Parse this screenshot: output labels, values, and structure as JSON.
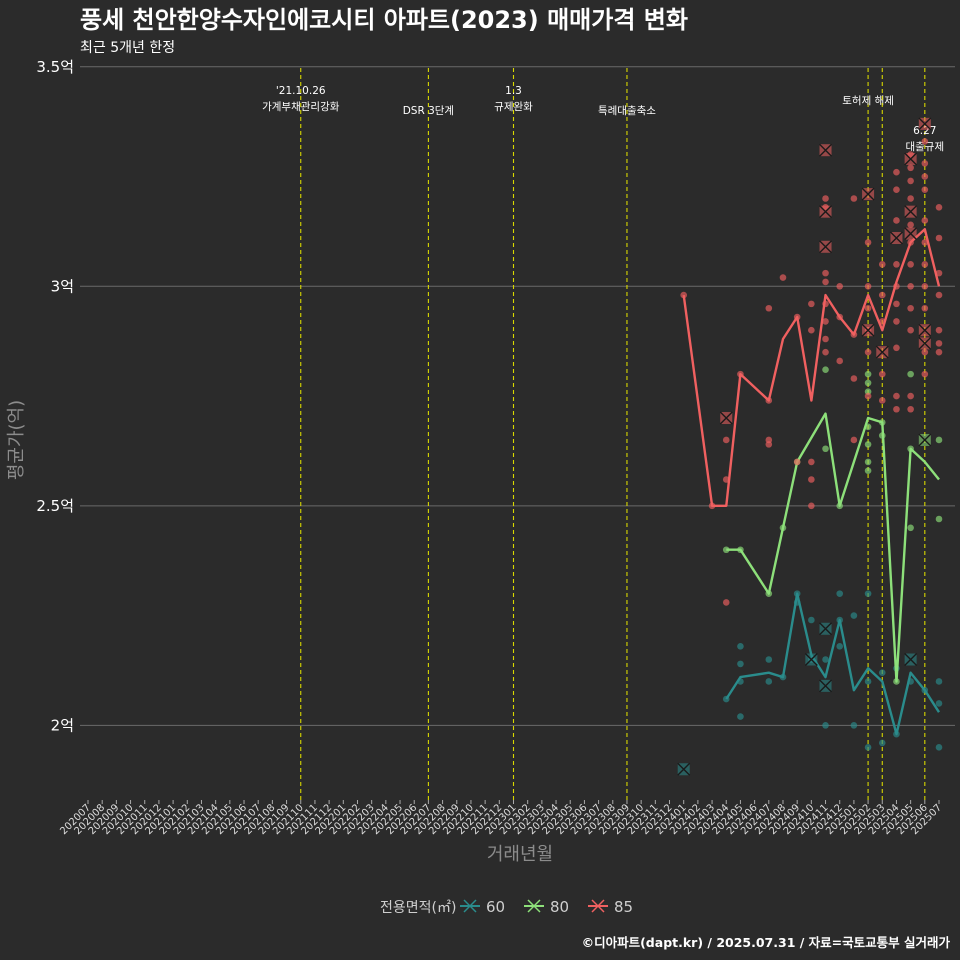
{
  "title": "풍세 천안한양수자인에코시티 아파트(2023) 매매가격 변화",
  "subtitle": "최근 5개년 한정",
  "caption": "©디아파트(dapt.kr) / 2025.07.31 / 자료=국토교통부 실거래가",
  "chart_data": {
    "type": "line",
    "xlabel": "거래년월",
    "ylabel": "평균가(억)",
    "ylim": [
      1.83,
      3.52
    ],
    "y_ticks": [
      {
        "value": 2.0,
        "label": "2억"
      },
      {
        "value": 2.5,
        "label": "2.5억"
      },
      {
        "value": 3.0,
        "label": "3억"
      },
      {
        "value": 3.5,
        "label": "3.5억"
      }
    ],
    "x_categories": [
      "202007",
      "202008",
      "202009",
      "202010",
      "202011",
      "202012",
      "202101",
      "202102",
      "202103",
      "202104",
      "202105",
      "202106",
      "202107",
      "202108",
      "202109",
      "202110",
      "202111",
      "202112",
      "202201",
      "202202",
      "202203",
      "202204",
      "202205",
      "202206",
      "202207",
      "202208",
      "202209",
      "202210",
      "202211",
      "202212",
      "202301",
      "202302",
      "202303",
      "202304",
      "202305",
      "202306",
      "202307",
      "202308",
      "202309",
      "202310",
      "202311",
      "202312",
      "202401",
      "202402",
      "202403",
      "202404",
      "202405",
      "202406",
      "202407",
      "202408",
      "202409",
      "202410",
      "202411",
      "202412",
      "202501",
      "202502",
      "202503",
      "202504",
      "202505",
      "202506",
      "202507"
    ],
    "grid": true,
    "legend": {
      "title": "전용면적(㎡)",
      "position": "bottom",
      "items": [
        {
          "label": "60",
          "color": "#2a8c8c"
        },
        {
          "label": "80",
          "color": "#8de07a"
        },
        {
          "label": "85",
          "color": "#f06060"
        }
      ]
    },
    "events": [
      {
        "x": "202110",
        "lines": [
          "'21.10.26",
          "가계부채관리강화"
        ],
        "row": 0
      },
      {
        "x": "202207",
        "lines": [
          "DSR 3단계"
        ],
        "row": 1
      },
      {
        "x": "202301",
        "lines": [
          "1.3",
          "규제완화"
        ],
        "row": 0
      },
      {
        "x": "202309",
        "lines": [
          "특례대출축소"
        ],
        "row": 1
      },
      {
        "x": "202502",
        "lines": [
          "토허제 해제"
        ],
        "row": 0.5
      },
      {
        "x": "202503",
        "lines": [],
        "row": 0
      },
      {
        "x": "202506",
        "lines": [
          "6.27",
          "대출규제"
        ],
        "row": 2
      }
    ],
    "series": [
      {
        "name": "60",
        "color": "#2a8c8c",
        "line": [
          {
            "x": "202404",
            "y": 2.06
          },
          {
            "x": "202405",
            "y": 2.11
          },
          {
            "x": "202407",
            "y": 2.12
          },
          {
            "x": "202408",
            "y": 2.11
          },
          {
            "x": "202409",
            "y": 2.3
          },
          {
            "x": "202410",
            "y": 2.16
          },
          {
            "x": "202411",
            "y": 2.11
          },
          {
            "x": "202412",
            "y": 2.24
          },
          {
            "x": "202501",
            "y": 2.08
          },
          {
            "x": "202502",
            "y": 2.13
          },
          {
            "x": "202503",
            "y": 2.1
          },
          {
            "x": "202504",
            "y": 1.98
          },
          {
            "x": "202505",
            "y": 2.12
          },
          {
            "x": "202506",
            "y": 2.08
          },
          {
            "x": "202507",
            "y": 2.03
          }
        ],
        "points": [
          {
            "x": "202404",
            "y": 2.06
          },
          {
            "x": "202405",
            "y": 2.1
          },
          {
            "x": "202405",
            "y": 2.14
          },
          {
            "x": "202405",
            "y": 2.18
          },
          {
            "x": "202405",
            "y": 2.02
          },
          {
            "x": "202407",
            "y": 2.15
          },
          {
            "x": "202407",
            "y": 2.1
          },
          {
            "x": "202408",
            "y": 2.11
          },
          {
            "x": "202409",
            "y": 2.3
          },
          {
            "x": "202409",
            "y": 2.28
          },
          {
            "x": "202410",
            "y": 2.15
          },
          {
            "x": "202410",
            "y": 2.24
          },
          {
            "x": "202411",
            "y": 2.0
          },
          {
            "x": "202411",
            "y": 2.15
          },
          {
            "x": "202412",
            "y": 2.24
          },
          {
            "x": "202412",
            "y": 2.18
          },
          {
            "x": "202412",
            "y": 2.3
          },
          {
            "x": "202501",
            "y": 2.0
          },
          {
            "x": "202501",
            "y": 2.25
          },
          {
            "x": "202502",
            "y": 1.95
          },
          {
            "x": "202502",
            "y": 2.1
          },
          {
            "x": "202502",
            "y": 2.3
          },
          {
            "x": "202503",
            "y": 2.12
          },
          {
            "x": "202503",
            "y": 1.96
          },
          {
            "x": "202504",
            "y": 1.98
          },
          {
            "x": "202504",
            "y": 2.13
          },
          {
            "x": "202505",
            "y": 2.1
          },
          {
            "x": "202506",
            "y": 2.08
          },
          {
            "x": "202507",
            "y": 2.05
          },
          {
            "x": "202507",
            "y": 1.95
          },
          {
            "x": "202507",
            "y": 2.1
          }
        ],
        "crosses": [
          {
            "x": "202401",
            "y": 1.9
          },
          {
            "x": "202410",
            "y": 2.15
          },
          {
            "x": "202411",
            "y": 2.22
          },
          {
            "x": "202411",
            "y": 2.09
          },
          {
            "x": "202505",
            "y": 2.15
          }
        ]
      },
      {
        "name": "80",
        "color": "#8de07a",
        "line": [
          {
            "x": "202404",
            "y": 2.4
          },
          {
            "x": "202405",
            "y": 2.4
          },
          {
            "x": "202407",
            "y": 2.3
          },
          {
            "x": "202408",
            "y": 2.45
          },
          {
            "x": "202409",
            "y": 2.6
          },
          {
            "x": "202411",
            "y": 2.71
          },
          {
            "x": "202412",
            "y": 2.5
          },
          {
            "x": "202502",
            "y": 2.7
          },
          {
            "x": "202503",
            "y": 2.69
          },
          {
            "x": "202504",
            "y": 2.1
          },
          {
            "x": "202505",
            "y": 2.63
          },
          {
            "x": "202506",
            "y": 2.6
          },
          {
            "x": "202507",
            "y": 2.56
          }
        ],
        "points": [
          {
            "x": "202404",
            "y": 2.4
          },
          {
            "x": "202405",
            "y": 2.4
          },
          {
            "x": "202407",
            "y": 2.3
          },
          {
            "x": "202408",
            "y": 2.45
          },
          {
            "x": "202409",
            "y": 2.6
          },
          {
            "x": "202411",
            "y": 2.81
          },
          {
            "x": "202411",
            "y": 2.63
          },
          {
            "x": "202412",
            "y": 2.5
          },
          {
            "x": "202502",
            "y": 2.78
          },
          {
            "x": "202502",
            "y": 2.8
          },
          {
            "x": "202502",
            "y": 2.76
          },
          {
            "x": "202502",
            "y": 2.68
          },
          {
            "x": "202502",
            "y": 2.64
          },
          {
            "x": "202502",
            "y": 2.6
          },
          {
            "x": "202502",
            "y": 2.58
          },
          {
            "x": "202503",
            "y": 2.69
          },
          {
            "x": "202503",
            "y": 2.66
          },
          {
            "x": "202504",
            "y": 2.1
          },
          {
            "x": "202505",
            "y": 2.63
          },
          {
            "x": "202505",
            "y": 2.45
          },
          {
            "x": "202505",
            "y": 2.8
          },
          {
            "x": "202507",
            "y": 2.65
          },
          {
            "x": "202507",
            "y": 2.47
          }
        ],
        "crosses": [
          {
            "x": "202506",
            "y": 2.65
          }
        ]
      },
      {
        "name": "85",
        "color": "#f06060",
        "line": [
          {
            "x": "202401",
            "y": 2.98
          },
          {
            "x": "202403",
            "y": 2.5
          },
          {
            "x": "202404",
            "y": 2.5
          },
          {
            "x": "202405",
            "y": 2.8
          },
          {
            "x": "202407",
            "y": 2.74
          },
          {
            "x": "202408",
            "y": 2.88
          },
          {
            "x": "202409",
            "y": 2.93
          },
          {
            "x": "202410",
            "y": 2.74
          },
          {
            "x": "202411",
            "y": 2.98
          },
          {
            "x": "202412",
            "y": 2.93
          },
          {
            "x": "202501",
            "y": 2.89
          },
          {
            "x": "202502",
            "y": 2.98
          },
          {
            "x": "202503",
            "y": 2.9
          },
          {
            "x": "202504",
            "y": 3.01
          },
          {
            "x": "202505",
            "y": 3.1
          },
          {
            "x": "202506",
            "y": 3.13
          },
          {
            "x": "202507",
            "y": 3.0
          }
        ],
        "points": [
          {
            "x": "202401",
            "y": 2.98
          },
          {
            "x": "202403",
            "y": 2.5
          },
          {
            "x": "202404",
            "y": 2.65
          },
          {
            "x": "202404",
            "y": 2.56
          },
          {
            "x": "202404",
            "y": 2.28
          },
          {
            "x": "202405",
            "y": 2.8
          },
          {
            "x": "202407",
            "y": 2.95
          },
          {
            "x": "202407",
            "y": 2.74
          },
          {
            "x": "202407",
            "y": 2.65
          },
          {
            "x": "202407",
            "y": 2.64
          },
          {
            "x": "202408",
            "y": 3.02
          },
          {
            "x": "202409",
            "y": 2.93
          },
          {
            "x": "202409",
            "y": 2.6
          },
          {
            "x": "202410",
            "y": 2.96
          },
          {
            "x": "202410",
            "y": 2.9
          },
          {
            "x": "202410",
            "y": 2.6
          },
          {
            "x": "202410",
            "y": 2.56
          },
          {
            "x": "202410",
            "y": 2.5
          },
          {
            "x": "202411",
            "y": 3.2
          },
          {
            "x": "202411",
            "y": 3.18
          },
          {
            "x": "202411",
            "y": 3.03
          },
          {
            "x": "202411",
            "y": 3.01
          },
          {
            "x": "202411",
            "y": 2.96
          },
          {
            "x": "202411",
            "y": 2.92
          },
          {
            "x": "202411",
            "y": 2.88
          },
          {
            "x": "202411",
            "y": 2.85
          },
          {
            "x": "202412",
            "y": 3.0
          },
          {
            "x": "202412",
            "y": 2.93
          },
          {
            "x": "202412",
            "y": 2.83
          },
          {
            "x": "202501",
            "y": 3.2
          },
          {
            "x": "202501",
            "y": 2.89
          },
          {
            "x": "202501",
            "y": 2.79
          },
          {
            "x": "202501",
            "y": 2.65
          },
          {
            "x": "202502",
            "y": 3.1
          },
          {
            "x": "202502",
            "y": 3.0
          },
          {
            "x": "202502",
            "y": 2.95
          },
          {
            "x": "202502",
            "y": 2.9
          },
          {
            "x": "202502",
            "y": 2.85
          },
          {
            "x": "202502",
            "y": 2.75
          },
          {
            "x": "202503",
            "y": 3.05
          },
          {
            "x": "202503",
            "y": 2.98
          },
          {
            "x": "202503",
            "y": 2.92
          },
          {
            "x": "202503",
            "y": 2.8
          },
          {
            "x": "202503",
            "y": 2.74
          },
          {
            "x": "202504",
            "y": 3.26
          },
          {
            "x": "202504",
            "y": 3.22
          },
          {
            "x": "202504",
            "y": 3.15
          },
          {
            "x": "202504",
            "y": 3.05
          },
          {
            "x": "202504",
            "y": 3.0
          },
          {
            "x": "202504",
            "y": 2.96
          },
          {
            "x": "202504",
            "y": 2.92
          },
          {
            "x": "202504",
            "y": 2.86
          },
          {
            "x": "202504",
            "y": 2.75
          },
          {
            "x": "202504",
            "y": 2.72
          },
          {
            "x": "202505",
            "y": 3.3
          },
          {
            "x": "202505",
            "y": 3.27
          },
          {
            "x": "202505",
            "y": 3.24
          },
          {
            "x": "202505",
            "y": 3.2
          },
          {
            "x": "202505",
            "y": 3.14
          },
          {
            "x": "202505",
            "y": 3.1
          },
          {
            "x": "202505",
            "y": 3.05
          },
          {
            "x": "202505",
            "y": 3.0
          },
          {
            "x": "202505",
            "y": 2.95
          },
          {
            "x": "202505",
            "y": 2.9
          },
          {
            "x": "202505",
            "y": 2.75
          },
          {
            "x": "202505",
            "y": 2.72
          },
          {
            "x": "202506",
            "y": 3.33
          },
          {
            "x": "202506",
            "y": 3.28
          },
          {
            "x": "202506",
            "y": 3.25
          },
          {
            "x": "202506",
            "y": 3.22
          },
          {
            "x": "202506",
            "y": 3.15
          },
          {
            "x": "202506",
            "y": 3.1
          },
          {
            "x": "202506",
            "y": 3.05
          },
          {
            "x": "202506",
            "y": 3.0
          },
          {
            "x": "202506",
            "y": 2.95
          },
          {
            "x": "202506",
            "y": 2.85
          },
          {
            "x": "202506",
            "y": 2.8
          },
          {
            "x": "202507",
            "y": 3.18
          },
          {
            "x": "202507",
            "y": 3.11
          },
          {
            "x": "202507",
            "y": 3.03
          },
          {
            "x": "202507",
            "y": 2.98
          },
          {
            "x": "202507",
            "y": 2.9
          },
          {
            "x": "202507",
            "y": 2.87
          },
          {
            "x": "202507",
            "y": 2.85
          }
        ],
        "crosses": [
          {
            "x": "202404",
            "y": 2.7
          },
          {
            "x": "202411",
            "y": 3.31
          },
          {
            "x": "202411",
            "y": 3.17
          },
          {
            "x": "202411",
            "y": 3.09
          },
          {
            "x": "202502",
            "y": 3.21
          },
          {
            "x": "202502",
            "y": 2.9
          },
          {
            "x": "202503",
            "y": 2.85
          },
          {
            "x": "202504",
            "y": 3.11
          },
          {
            "x": "202505",
            "y": 3.29
          },
          {
            "x": "202505",
            "y": 3.17
          },
          {
            "x": "202505",
            "y": 3.12
          },
          {
            "x": "202506",
            "y": 2.9
          },
          {
            "x": "202506",
            "y": 2.87
          },
          {
            "x": "202506",
            "y": 3.37
          }
        ]
      }
    ]
  }
}
